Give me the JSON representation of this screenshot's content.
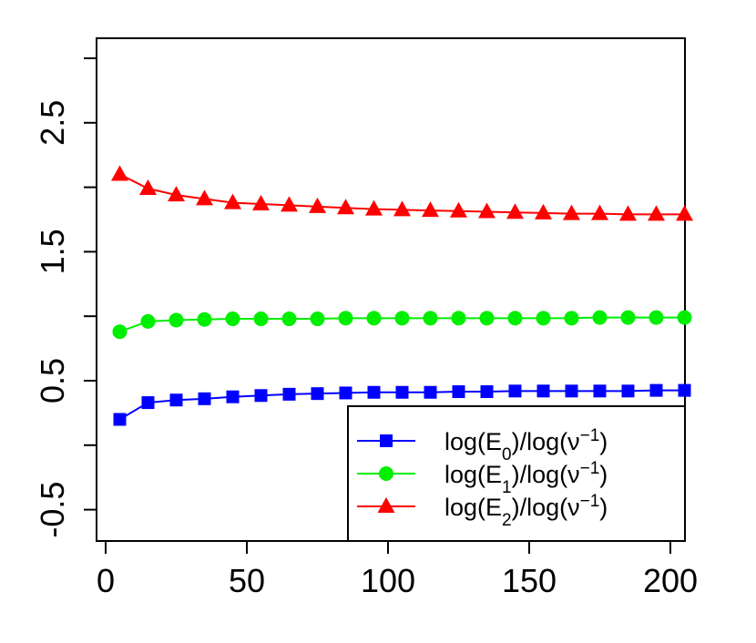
{
  "chart_data": {
    "type": "line",
    "x": [
      5,
      15,
      25,
      35,
      45,
      55,
      65,
      75,
      85,
      95,
      105,
      115,
      125,
      135,
      145,
      155,
      165,
      175,
      185,
      195,
      205
    ],
    "xlim": [
      0,
      205
    ],
    "ylim": [
      -0.75,
      3.05
    ],
    "xticks": [
      "0",
      "50",
      "100",
      "150",
      "200"
    ],
    "yticks": [
      "-0.5",
      "0.5",
      "1.5",
      "2.5"
    ],
    "xlabel": "",
    "ylabel": "",
    "grid": false,
    "legend_position": "bottom-right",
    "series": [
      {
        "name": "log(E0)/log(ν−1)",
        "legend": {
          "pre": "log(E",
          "sub": "0",
          "mid": ")/log(ν",
          "sup": "−1",
          "post": ")"
        },
        "color": "#0000ff",
        "marker": "square",
        "values": [
          0.2,
          0.33,
          0.35,
          0.36,
          0.375,
          0.385,
          0.395,
          0.4,
          0.405,
          0.41,
          0.41,
          0.41,
          0.415,
          0.415,
          0.42,
          0.42,
          0.42,
          0.42,
          0.42,
          0.425,
          0.425
        ]
      },
      {
        "name": "log(E1)/log(ν−1)",
        "legend": {
          "pre": "log(E",
          "sub": "1",
          "mid": ")/log(ν",
          "sup": "−1",
          "post": ")"
        },
        "color": "#00ee00",
        "marker": "circle",
        "values": [
          0.88,
          0.96,
          0.97,
          0.975,
          0.98,
          0.98,
          0.98,
          0.98,
          0.985,
          0.985,
          0.985,
          0.985,
          0.985,
          0.985,
          0.985,
          0.985,
          0.985,
          0.99,
          0.99,
          0.99,
          0.99
        ]
      },
      {
        "name": "log(E2)/log(ν−1)",
        "legend": {
          "pre": "log(E",
          "sub": "2",
          "mid": ")/log(ν",
          "sup": "−1",
          "post": ")"
        },
        "color": "#ff0000",
        "marker": "triangle",
        "values": [
          2.1,
          1.99,
          1.94,
          1.91,
          1.88,
          1.87,
          1.86,
          1.85,
          1.84,
          1.83,
          1.825,
          1.82,
          1.815,
          1.81,
          1.805,
          1.8,
          1.795,
          1.795,
          1.79,
          1.79,
          1.79
        ]
      }
    ]
  }
}
